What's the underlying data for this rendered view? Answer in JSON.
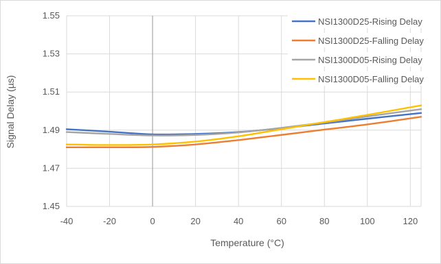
{
  "chart_data": {
    "type": "line",
    "title": "",
    "xlabel": "Temperature (°C)",
    "ylabel": "Signal Delay (µs)",
    "xlim": [
      -40,
      125
    ],
    "ylim": [
      1.45,
      1.55
    ],
    "x_ticks": [
      "-40",
      "-20",
      "0",
      "20",
      "40",
      "60",
      "80",
      "100",
      "120"
    ],
    "y_ticks": [
      "1.45",
      "1.47",
      "1.49",
      "1.51",
      "1.53",
      "1.55"
    ],
    "grid": true,
    "legend_position": "top-right",
    "x": [
      -40,
      -20,
      0,
      20,
      40,
      60,
      80,
      100,
      125
    ],
    "series": [
      {
        "name": "NSI1300D25-Rising Delay",
        "color": "#4472c4",
        "values": [
          1.4905,
          1.4892,
          1.4878,
          1.488,
          1.489,
          1.491,
          1.4935,
          1.496,
          1.499
        ]
      },
      {
        "name": "NSI1300D25-Falling Delay",
        "color": "#ed7d31",
        "values": [
          1.481,
          1.481,
          1.4812,
          1.4825,
          1.4848,
          1.4875,
          1.4903,
          1.493,
          1.497
        ]
      },
      {
        "name": "NSI1300D05-Rising Delay",
        "color": "#a5a5a5",
        "values": [
          1.489,
          1.488,
          1.4872,
          1.4875,
          1.4888,
          1.4912,
          1.494,
          1.4972,
          1.501
        ]
      },
      {
        "name": "NSI1300D05-Falling Delay",
        "color": "#ffc000",
        "values": [
          1.4825,
          1.4822,
          1.4825,
          1.484,
          1.4868,
          1.4905,
          1.4942,
          1.498,
          1.503
        ]
      }
    ]
  }
}
